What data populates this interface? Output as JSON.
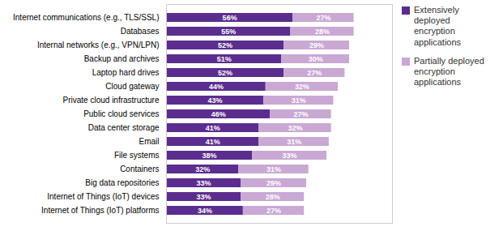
{
  "chart_data": {
    "type": "bar",
    "orientation": "horizontal",
    "stacked": true,
    "data_labels": true,
    "tick_labels": "y",
    "grid": false,
    "legend": "upper right",
    "xlim": [
      0,
      100
    ],
    "categories": [
      "Internet of Things (IoT) platforms",
      "Internet of Things (IoT) devices",
      "Big data repositories",
      "Containers",
      "File systems",
      "Email",
      "Data center storage",
      "Public cloud services",
      "Private cloud infrastructure",
      "Cloud gateway",
      "Laptop hard drives",
      "Backup and archives",
      "Internal networks (e.g., VPN/LPN)",
      "Databases",
      "Internet communications (e.g., TLS/SSL)"
    ],
    "series": [
      {
        "name": "Extensively\ndeployed\nencryption\napplications",
        "color": "#5b2d8e",
        "values": [
          34,
          33,
          33,
          32,
          38,
          41,
          41,
          46,
          43,
          44,
          52,
          51,
          52,
          55,
          56
        ],
        "value_labels": [
          "34%",
          "33%",
          "33%",
          "32%",
          "38%",
          "41%",
          "41%",
          "46%",
          "43%",
          "44%",
          "52%",
          "51%",
          "52%",
          "55%",
          "56%"
        ]
      },
      {
        "name": "Partially deployed\nencryption\napplications",
        "color": "#c9a8d4",
        "values": [
          27,
          28,
          29,
          31,
          33,
          31,
          32,
          27,
          31,
          32,
          27,
          30,
          29,
          28,
          27
        ],
        "value_labels": [
          "27%",
          "28%",
          "29%",
          "31%",
          "33%",
          "31%",
          "32%",
          "27%",
          "31%",
          "32%",
          "27%",
          "30%",
          "29%",
          "28%",
          "27%"
        ]
      }
    ]
  }
}
